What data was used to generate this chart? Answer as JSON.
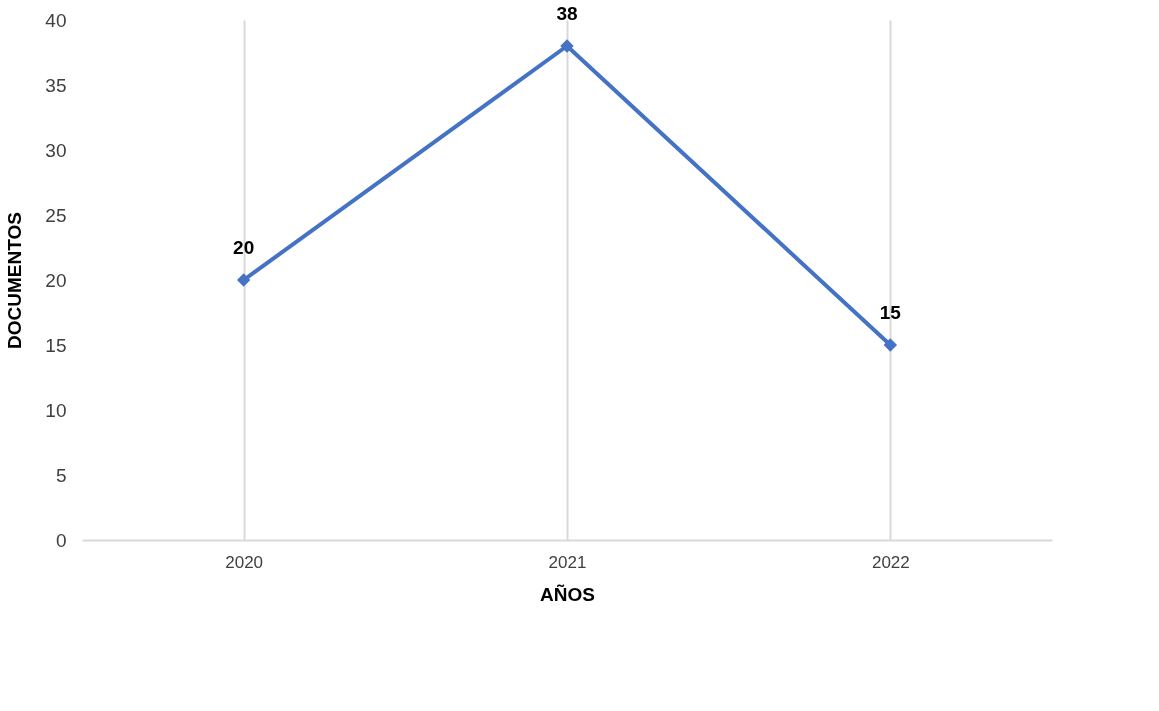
{
  "chart_data": {
    "type": "line",
    "xlabel": "AÑOS",
    "ylabel": "DOCUMENTOS",
    "categories": [
      "2020",
      "2021",
      "2022"
    ],
    "series": [
      {
        "color": "#4472c4",
        "values": [
          20,
          38,
          15
        ]
      }
    ],
    "ylim": [
      0,
      40
    ],
    "yticks": [
      0,
      5,
      10,
      15,
      20,
      25,
      30,
      35,
      40
    ],
    "grid": "x",
    "marker": "diamond",
    "line_style": "solid",
    "data_labels": true
  }
}
